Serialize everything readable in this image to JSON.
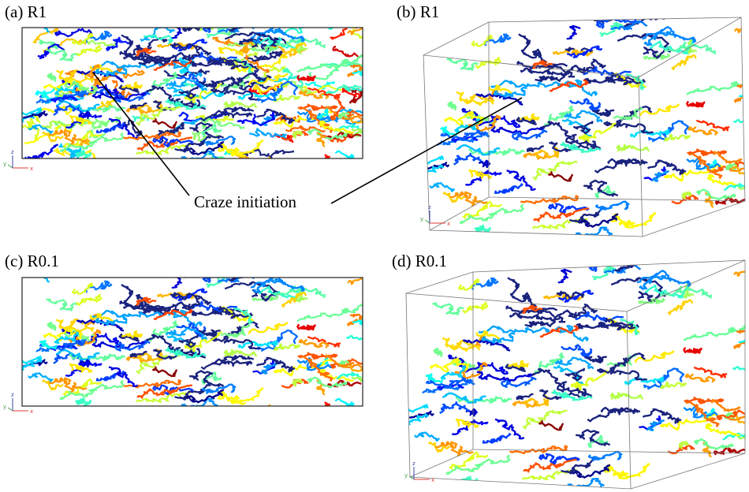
{
  "panels": [
    {
      "label": "(a) R1"
    },
    {
      "label": "(b) R1"
    },
    {
      "label": "(c) R0.1"
    },
    {
      "label": "(d) R0.1"
    }
  ],
  "annotation": "Craze initiation",
  "axis_labels": [
    "x",
    "y",
    "z"
  ]
}
